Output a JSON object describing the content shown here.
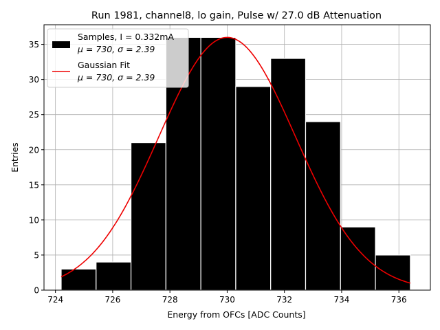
{
  "chart_data": {
    "type": "bar",
    "title": "Run 1981, channel8, lo gain, Pulse w/ 27.0 dB Attenuation",
    "xlabel": "Energy from OFCs [ADC Counts]",
    "ylabel": "Entries",
    "xlim": [
      723.6,
      737.1
    ],
    "ylim": [
      0,
      37.8
    ],
    "xticks": [
      724,
      726,
      728,
      730,
      732,
      734,
      736
    ],
    "yticks": [
      0,
      5,
      10,
      15,
      20,
      25,
      30,
      35
    ],
    "grid": true,
    "legend_position": "top-left",
    "bins": [
      {
        "x0": 724.2,
        "x1": 725.42,
        "count": 3
      },
      {
        "x0": 725.42,
        "x1": 726.64,
        "count": 4
      },
      {
        "x0": 726.64,
        "x1": 727.86,
        "count": 21
      },
      {
        "x0": 727.86,
        "x1": 729.08,
        "count": 36
      },
      {
        "x0": 729.08,
        "x1": 730.3,
        "count": 36
      },
      {
        "x0": 730.3,
        "x1": 731.52,
        "count": 29
      },
      {
        "x0": 731.52,
        "x1": 732.74,
        "count": 33
      },
      {
        "x0": 732.74,
        "x1": 733.96,
        "count": 24
      },
      {
        "x0": 733.96,
        "x1": 735.18,
        "count": 9
      },
      {
        "x0": 735.18,
        "x1": 736.4,
        "count": 5
      }
    ],
    "fit": {
      "mu": 730.0,
      "sigma": 2.39,
      "amplitude": 36.0,
      "x_range": [
        724.2,
        736.4
      ]
    },
    "legend": [
      {
        "label": "Samples, I = 0.332mA",
        "sublabel": "μ = 730, σ = 2.39",
        "color": "#000000",
        "kind": "patch"
      },
      {
        "label": "Gaussian Fit",
        "sublabel": "μ = 730, σ = 2.39",
        "color": "#ee0000",
        "kind": "line"
      }
    ]
  }
}
